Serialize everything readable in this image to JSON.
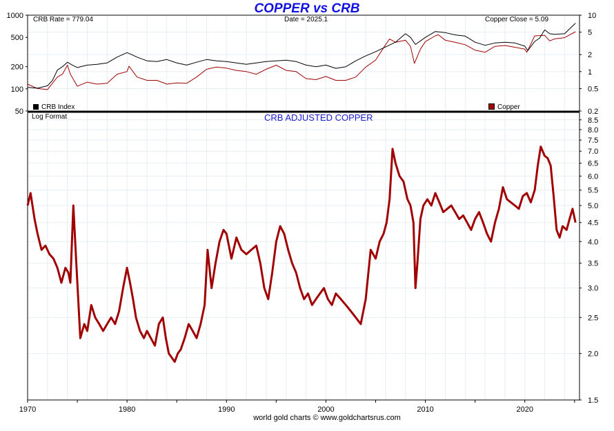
{
  "title": "COPPER vs CRB",
  "footer": "world gold charts © www.goldchartsrus.com",
  "top_panel": {
    "crb_rate": "CRB Rate = 779.04",
    "date": "Date = 2025.1",
    "copper_close": "Copper Close = 5.09",
    "legend_crb": "CRB Index",
    "legend_copper": "Copper",
    "colors": {
      "crb": "#000000",
      "copper": "#a00000"
    }
  },
  "bottom_panel": {
    "log_format": "Log Format",
    "subtitle": "CRB ADJUSTED COPPER",
    "line_color": "#a00000"
  },
  "chart_data": [
    {
      "type": "line",
      "title": "COPPER vs CRB",
      "left_axis": {
        "scale": "log",
        "range": [
          50,
          1000
        ],
        "ticks": [
          1000,
          500,
          200,
          100,
          50
        ],
        "tick_labels": [
          "1000",
          "500",
          "200",
          "100",
          "50"
        ]
      },
      "right_axis": {
        "scale": "log",
        "range": [
          0.2,
          10
        ],
        "ticks": [
          10,
          5,
          2,
          1,
          0.5,
          0.2
        ],
        "tick_labels": [
          "10",
          "5",
          "2",
          "1",
          "0.5",
          "0.2"
        ]
      },
      "x_axis": {
        "range": [
          1970,
          2025.5
        ]
      },
      "series": [
        {
          "name": "CRB Index",
          "axis": "left",
          "x": [
            1970,
            1971,
            1972,
            1972.5,
            1973,
            1973.5,
            1974,
            1974.5,
            1975,
            1976,
            1977,
            1978,
            1979,
            1980,
            1980.5,
            1981,
            1982,
            1983,
            1984,
            1985,
            1986,
            1987,
            1988,
            1989,
            1990,
            1991,
            1992,
            1993,
            1994,
            1995,
            1996,
            1997,
            1998,
            1999,
            2000,
            2001,
            2002,
            2003,
            2004,
            2005,
            2006,
            2007,
            2008,
            2008.5,
            2009,
            2010,
            2011,
            2012,
            2013,
            2014,
            2015,
            2016,
            2017,
            2018,
            2019,
            2020,
            2020.3,
            2021,
            2021.5,
            2022,
            2022.5,
            2023,
            2024,
            2025.1
          ],
          "y": [
            105,
            102,
            110,
            130,
            180,
            200,
            230,
            210,
            195,
            210,
            215,
            225,
            270,
            310,
            290,
            270,
            240,
            235,
            250,
            225,
            210,
            230,
            250,
            240,
            235,
            225,
            215,
            225,
            235,
            240,
            245,
            235,
            210,
            200,
            210,
            190,
            200,
            240,
            280,
            320,
            370,
            430,
            560,
            500,
            400,
            500,
            600,
            580,
            540,
            520,
            430,
            390,
            420,
            430,
            420,
            380,
            330,
            440,
            490,
            630,
            560,
            550,
            560,
            779
          ]
        },
        {
          "name": "Copper",
          "axis": "right",
          "x": [
            1970,
            1971,
            1972,
            1973,
            1973.5,
            1974,
            1974.3,
            1975,
            1976,
            1977,
            1978,
            1979,
            1980,
            1980.2,
            1981,
            1982,
            1983,
            1984,
            1985,
            1986,
            1987,
            1988,
            1989,
            1990,
            1991,
            1992,
            1993,
            1994,
            1995,
            1996,
            1997,
            1998,
            1999,
            2000,
            2001,
            2002,
            2003,
            2004,
            2005,
            2006,
            2006.4,
            2007,
            2008,
            2008.5,
            2008.9,
            2009.5,
            2010,
            2011,
            2011.3,
            2012,
            2013,
            2014,
            2015,
            2016,
            2017,
            2018,
            2019,
            2020,
            2020.2,
            2021,
            2022,
            2022.5,
            2023,
            2024,
            2025.1
          ],
          "y": [
            0.6,
            0.5,
            0.48,
            0.8,
            0.9,
            1.3,
            0.9,
            0.55,
            0.65,
            0.6,
            0.62,
            0.9,
            1.0,
            1.25,
            0.8,
            0.7,
            0.7,
            0.6,
            0.63,
            0.62,
            0.8,
            1.1,
            1.2,
            1.15,
            1.05,
            1.0,
            0.9,
            1.1,
            1.3,
            1.05,
            1.0,
            0.75,
            0.72,
            0.82,
            0.7,
            0.7,
            0.8,
            1.2,
            1.6,
            3.0,
            3.8,
            3.3,
            3.6,
            2.8,
            1.4,
            2.5,
            3.4,
            4.3,
            4.5,
            3.6,
            3.3,
            3.0,
            2.4,
            2.2,
            2.8,
            2.9,
            2.7,
            2.5,
            2.2,
            4.3,
            4.4,
            3.5,
            3.8,
            4.0,
            5.09
          ]
        }
      ]
    },
    {
      "type": "line",
      "title": "CRB ADJUSTED COPPER",
      "y_axis": {
        "scale": "log",
        "range": [
          1.5,
          8.9
        ],
        "ticks": [
          8.5,
          8.0,
          7.5,
          7.0,
          6.5,
          6.0,
          5.5,
          5.0,
          4.5,
          4.0,
          3.5,
          3.0,
          2.5,
          2.0,
          1.5
        ],
        "tick_labels": [
          "8.5",
          "8.0",
          "7.5",
          "7.0",
          "6.5",
          "6.0",
          "5.5",
          "5.0",
          "4.5",
          "4.0",
          "3.5",
          "3.0",
          "2.5",
          "2.0",
          "1.5"
        ]
      },
      "x_axis": {
        "range": [
          1970,
          2025.5
        ],
        "ticks": [
          1970,
          1980,
          1990,
          2000,
          2010,
          2020
        ],
        "tick_labels": [
          "1970",
          "1980",
          "1990",
          "2000",
          "2010",
          "2020"
        ]
      },
      "series": [
        {
          "name": "Copper",
          "x": [
            1970,
            1970.3,
            1970.7,
            1971,
            1971.4,
            1971.8,
            1972.2,
            1972.6,
            1973,
            1973.4,
            1973.8,
            1974.1,
            1974.3,
            1974.6,
            1974.9,
            1975.3,
            1975.7,
            1976,
            1976.4,
            1976.8,
            1977.2,
            1977.6,
            1978,
            1978.4,
            1978.8,
            1979.2,
            1979.6,
            1980,
            1980.3,
            1980.6,
            1980.9,
            1981.3,
            1981.7,
            1982,
            1982.4,
            1982.8,
            1983.2,
            1983.6,
            1983.9,
            1984.2,
            1984.5,
            1984.8,
            1985.1,
            1985.4,
            1985.8,
            1986.2,
            1986.6,
            1987,
            1987.4,
            1987.8,
            1988.1,
            1988.5,
            1988.9,
            1989.3,
            1989.7,
            1990,
            1990.5,
            1991,
            1991.5,
            1992,
            1992.5,
            1993,
            1993.4,
            1993.8,
            1994.2,
            1994.6,
            1995,
            1995.4,
            1995.8,
            1996.2,
            1996.6,
            1997,
            1997.4,
            1997.8,
            1998.2,
            1998.6,
            1999,
            1999.4,
            1999.8,
            2000.2,
            2000.6,
            2001,
            2001.5,
            2002,
            2002.5,
            2003,
            2003.5,
            2004,
            2004.5,
            2005,
            2005.4,
            2005.8,
            2006.1,
            2006.4,
            2006.7,
            2007,
            2007.4,
            2007.8,
            2008.2,
            2008.5,
            2008.8,
            2009,
            2009.2,
            2009.5,
            2009.8,
            2010.2,
            2010.6,
            2011,
            2011.4,
            2011.8,
            2012.2,
            2012.6,
            2013,
            2013.4,
            2013.8,
            2014.2,
            2014.6,
            2015,
            2015.4,
            2015.8,
            2016.2,
            2016.6,
            2017,
            2017.4,
            2017.8,
            2018.2,
            2018.6,
            2019,
            2019.4,
            2019.8,
            2020.2,
            2020.6,
            2021,
            2021.3,
            2021.6,
            2022,
            2022.3,
            2022.6,
            2022.9,
            2023.2,
            2023.5,
            2023.8,
            2024.2,
            2024.5,
            2024.8,
            2025.1
          ],
          "y": [
            5.0,
            5.4,
            4.6,
            4.2,
            3.8,
            3.9,
            3.7,
            3.6,
            3.4,
            3.1,
            3.4,
            3.3,
            3.1,
            5.0,
            3.5,
            2.2,
            2.4,
            2.3,
            2.7,
            2.5,
            2.4,
            2.3,
            2.4,
            2.5,
            2.4,
            2.6,
            3.0,
            3.4,
            3.1,
            2.8,
            2.5,
            2.3,
            2.2,
            2.3,
            2.2,
            2.1,
            2.4,
            2.5,
            2.2,
            2.0,
            1.95,
            1.9,
            2.0,
            2.05,
            2.2,
            2.4,
            2.3,
            2.2,
            2.4,
            2.7,
            3.8,
            3.0,
            3.5,
            4.0,
            4.3,
            4.2,
            3.6,
            4.1,
            3.8,
            3.7,
            3.8,
            3.9,
            3.5,
            3.0,
            2.8,
            3.3,
            4.0,
            4.4,
            4.2,
            3.8,
            3.5,
            3.3,
            3.0,
            2.8,
            2.9,
            2.7,
            2.8,
            2.9,
            3.0,
            2.8,
            2.7,
            2.9,
            2.8,
            2.7,
            2.6,
            2.5,
            2.4,
            2.8,
            3.8,
            3.6,
            4.0,
            4.2,
            4.5,
            5.2,
            7.1,
            6.5,
            6.0,
            5.8,
            5.2,
            5.0,
            4.5,
            3.0,
            3.5,
            4.6,
            5.0,
            5.2,
            5.0,
            5.4,
            5.1,
            4.8,
            4.9,
            5.0,
            4.8,
            4.6,
            4.7,
            4.5,
            4.3,
            4.6,
            4.8,
            4.5,
            4.2,
            4.0,
            4.5,
            4.9,
            5.6,
            5.2,
            5.1,
            5.0,
            4.9,
            5.3,
            5.4,
            5.1,
            5.5,
            6.4,
            7.2,
            6.8,
            6.7,
            6.4,
            5.3,
            4.3,
            4.1,
            4.4,
            4.3,
            4.6,
            4.9,
            4.5
          ]
        }
      ]
    }
  ]
}
